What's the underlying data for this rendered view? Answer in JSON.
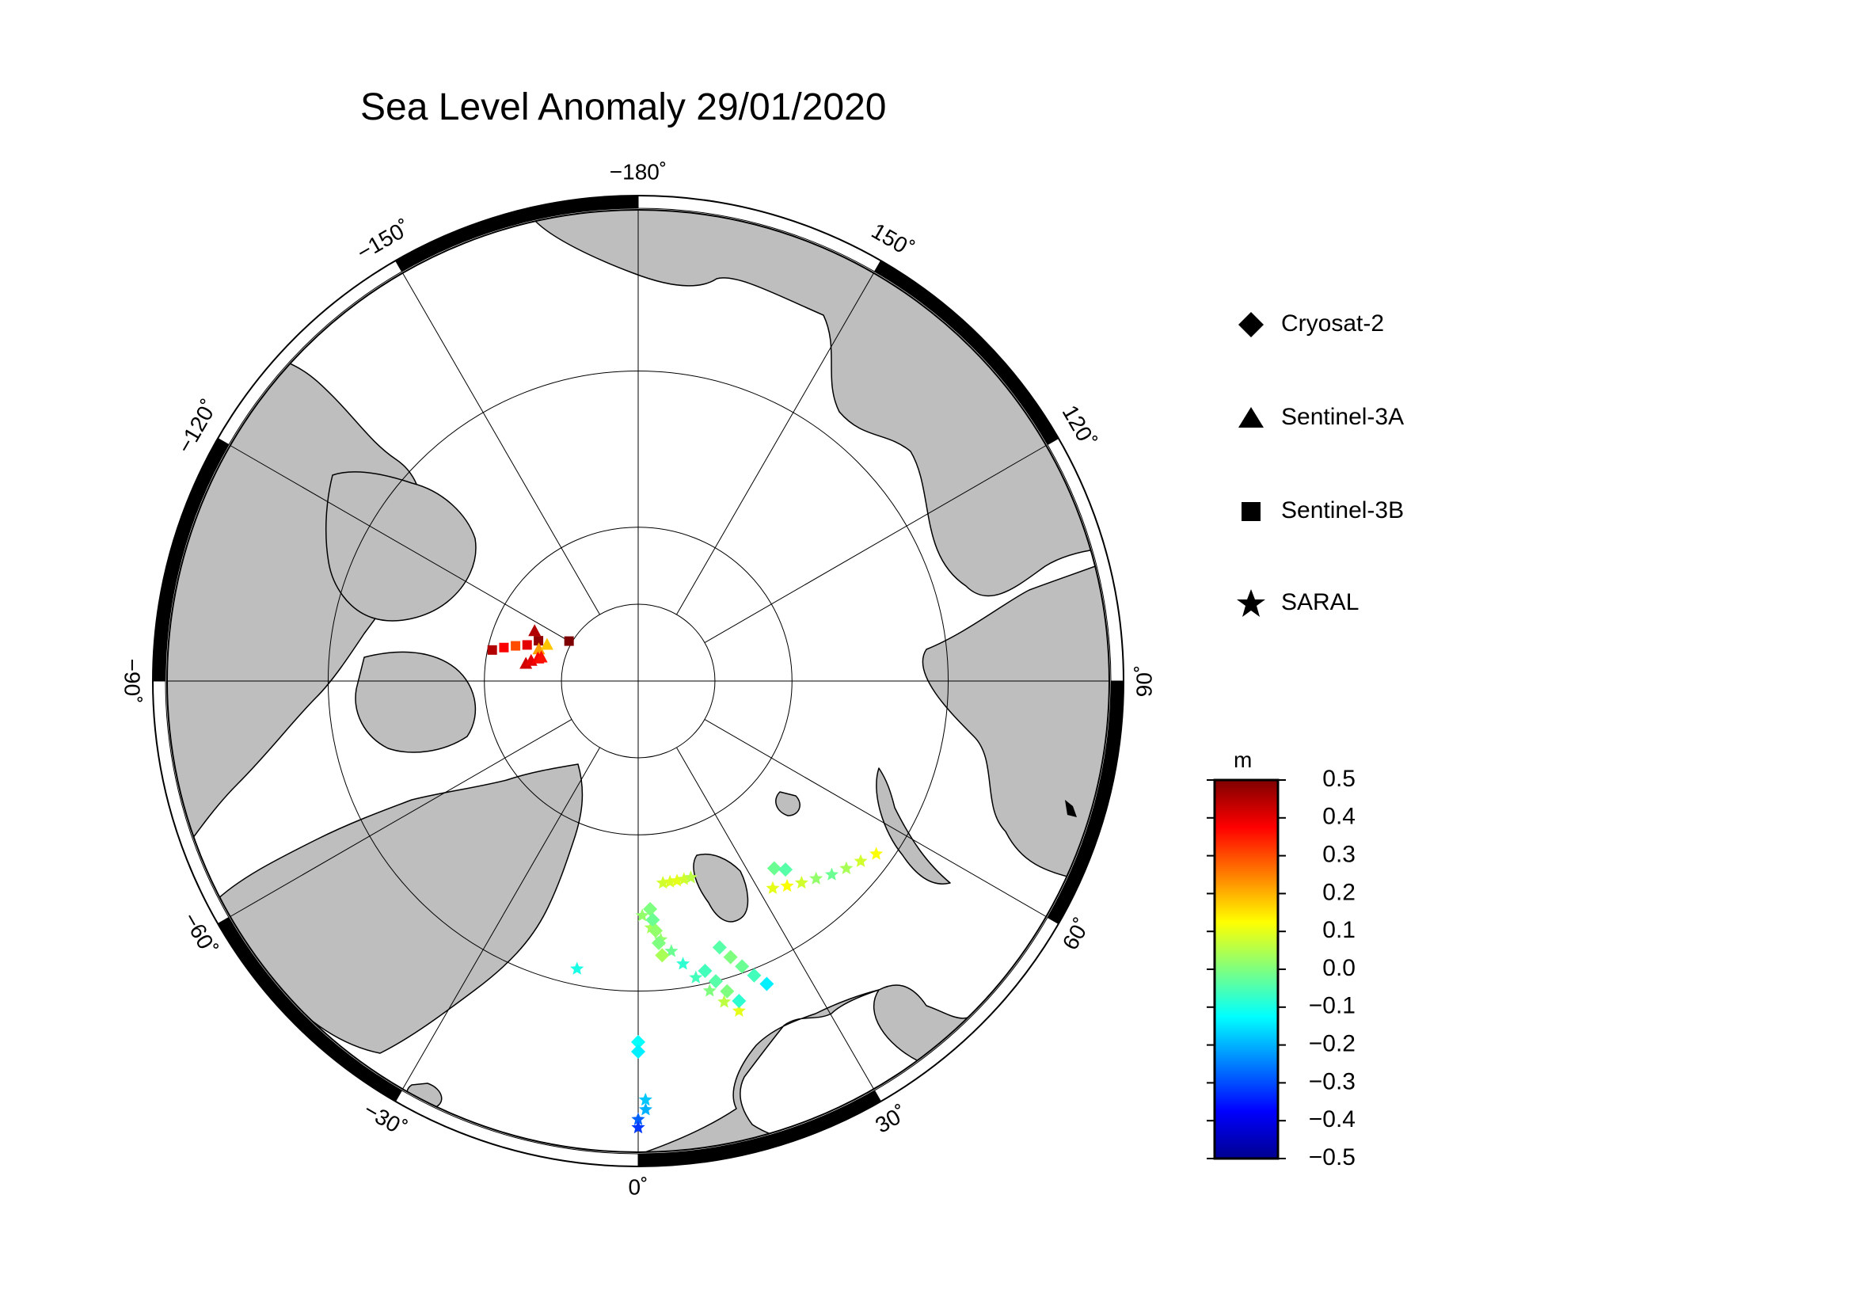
{
  "title": "Sea Level Anomaly 29/01/2020",
  "legend": [
    {
      "label": "Cryosat-2",
      "icon": "diamond-icon"
    },
    {
      "label": "Sentinel-3A",
      "icon": "triangle-icon"
    },
    {
      "label": "Sentinel-3B",
      "icon": "square-icon"
    },
    {
      "label": "SARAL",
      "icon": "star-icon"
    }
  ],
  "colorbar": {
    "unit": "m",
    "ticks": [
      "0.5",
      "0.4",
      "0.3",
      "0.2",
      "0.1",
      "0.0",
      "−0.1",
      "−0.2",
      "−0.3",
      "−0.4",
      "−0.5"
    ],
    "range": [
      -0.5,
      0.5
    ],
    "colors": [
      "#00008f",
      "#0000ff",
      "#007fff",
      "#00ffff",
      "#7fff7f",
      "#ffff00",
      "#ff7f00",
      "#ff0000",
      "#7f0000"
    ]
  },
  "map": {
    "projection": "north polar stereographic",
    "lon_labels": [
      {
        "lon": 180,
        "text": "−180˚"
      },
      {
        "lon": 150,
        "text": "150˚"
      },
      {
        "lon": 120,
        "text": "120˚"
      },
      {
        "lon": 90,
        "text": "90˚"
      },
      {
        "lon": 60,
        "text": "60˚"
      },
      {
        "lon": 30,
        "text": "30˚"
      },
      {
        "lon": 0,
        "text": "0˚"
      },
      {
        "lon": -30,
        "text": "−30˚"
      },
      {
        "lon": -60,
        "text": "−60˚"
      },
      {
        "lon": -90,
        "text": "−90˚"
      },
      {
        "lon": -120,
        "text": "−120˚"
      },
      {
        "lon": -150,
        "text": "−150˚"
      }
    ],
    "land_color": "#bebebe",
    "ocean_color": "#ffffff"
  },
  "observations": [
    {
      "satellite": "Sentinel-3B",
      "lat": 80.3,
      "lon": -102,
      "sla": 0.45
    },
    {
      "satellite": "Sentinel-3B",
      "lat": 81.0,
      "lon": -104,
      "sla": 0.38
    },
    {
      "satellite": "Sentinel-3B",
      "lat": 81.7,
      "lon": -106,
      "sla": 0.3
    },
    {
      "satellite": "Sentinel-3B",
      "lat": 82.4,
      "lon": -108,
      "sla": 0.4
    },
    {
      "satellite": "Sentinel-3B",
      "lat": 83.0,
      "lon": -112,
      "sla": 0.48
    },
    {
      "satellite": "Sentinel-3B",
      "lat": 84.8,
      "lon": -120,
      "sla": 0.5
    },
    {
      "satellite": "Sentinel-3A",
      "lat": 82.5,
      "lon": -116,
      "sla": 0.45
    },
    {
      "satellite": "Sentinel-3A",
      "lat": 83.2,
      "lon": -108,
      "sla": 0.22
    },
    {
      "satellite": "Sentinel-3A",
      "lat": 83.6,
      "lon": -112,
      "sla": 0.18
    },
    {
      "satellite": "Sentinel-3A",
      "lat": 82.6,
      "lon": -99,
      "sla": 0.42
    },
    {
      "satellite": "Sentinel-3A",
      "lat": 82.9,
      "lon": -101,
      "sla": 0.4
    },
    {
      "satellite": "Sentinel-3A",
      "lat": 83.3,
      "lon": -103,
      "sla": 0.38
    },
    {
      "satellite": "Sentinel-3A",
      "lat": 83.5,
      "lon": -104,
      "sla": 0.36
    },
    {
      "satellite": "SARAL",
      "lat": 76.8,
      "lon": 7,
      "sla": 0.08
    },
    {
      "satellite": "SARAL",
      "lat": 76.8,
      "lon": 9,
      "sla": 0.09
    },
    {
      "satellite": "SARAL",
      "lat": 76.8,
      "lon": 11,
      "sla": 0.1
    },
    {
      "satellite": "SARAL",
      "lat": 76.8,
      "lon": 13,
      "sla": 0.08
    },
    {
      "satellite": "SARAL",
      "lat": 76.8,
      "lon": 15,
      "sla": 0.06
    },
    {
      "satellite": "SARAL",
      "lat": 74.8,
      "lon": 1,
      "sla": 0.02
    },
    {
      "satellite": "SARAL",
      "lat": 74.0,
      "lon": 3,
      "sla": 0.04
    },
    {
      "satellite": "SARAL",
      "lat": 73.2,
      "lon": 5,
      "sla": 0.02
    },
    {
      "satellite": "SARAL",
      "lat": 72.4,
      "lon": 7,
      "sla": -0.02
    },
    {
      "satellite": "SARAL",
      "lat": 71.5,
      "lon": 9,
      "sla": -0.08
    },
    {
      "satellite": "SARAL",
      "lat": 70.5,
      "lon": 11,
      "sla": -0.06
    },
    {
      "satellite": "SARAL",
      "lat": 69.5,
      "lon": 13,
      "sla": 0.0
    },
    {
      "satellite": "SARAL",
      "lat": 68.6,
      "lon": 15,
      "sla": 0.06
    },
    {
      "satellite": "SARAL",
      "lat": 67.8,
      "lon": 17,
      "sla": 0.1
    },
    {
      "satellite": "SARAL",
      "lat": 74.0,
      "lon": 33,
      "sla": 0.1
    },
    {
      "satellite": "SARAL",
      "lat": 73.6,
      "lon": 36,
      "sla": 0.12
    },
    {
      "satellite": "SARAL",
      "lat": 73.2,
      "lon": 39,
      "sla": 0.08
    },
    {
      "satellite": "SARAL",
      "lat": 72.8,
      "lon": 42,
      "sla": 0.02
    },
    {
      "satellite": "SARAL",
      "lat": 72.3,
      "lon": 45,
      "sla": -0.02
    },
    {
      "satellite": "SARAL",
      "lat": 71.9,
      "lon": 48,
      "sla": 0.04
    },
    {
      "satellite": "SARAL",
      "lat": 71.5,
      "lon": 51,
      "sla": 0.08
    },
    {
      "satellite": "SARAL",
      "lat": 71.0,
      "lon": 54,
      "sla": 0.12
    },
    {
      "satellite": "SARAL",
      "lat": 71.0,
      "lon": -12,
      "sla": -0.1
    },
    {
      "satellite": "SARAL",
      "lat": 63.2,
      "lon": 1,
      "sla": -0.18
    },
    {
      "satellite": "SARAL",
      "lat": 62.6,
      "lon": 1,
      "sla": -0.2
    },
    {
      "satellite": "SARAL",
      "lat": 62.0,
      "lon": 0,
      "sla": -0.28
    },
    {
      "satellite": "SARAL",
      "lat": 61.5,
      "lon": 0,
      "sla": -0.32
    },
    {
      "satellite": "Cryosat-2",
      "lat": 75.2,
      "lon": 3,
      "sla": 0.0
    },
    {
      "satellite": "Cryosat-2",
      "lat": 74.5,
      "lon": 3.5,
      "sla": -0.02
    },
    {
      "satellite": "Cryosat-2",
      "lat": 73.8,
      "lon": 4,
      "sla": 0.02
    },
    {
      "satellite": "Cryosat-2",
      "lat": 73.0,
      "lon": 4.5,
      "sla": 0.0
    },
    {
      "satellite": "Cryosat-2",
      "lat": 72.2,
      "lon": 5,
      "sla": 0.04
    },
    {
      "satellite": "Cryosat-2",
      "lat": 70.8,
      "lon": 13,
      "sla": -0.06
    },
    {
      "satellite": "Cryosat-2",
      "lat": 70.0,
      "lon": 14.5,
      "sla": -0.04
    },
    {
      "satellite": "Cryosat-2",
      "lat": 69.2,
      "lon": 16,
      "sla": 0.0
    },
    {
      "satellite": "Cryosat-2",
      "lat": 68.4,
      "lon": 17.5,
      "sla": -0.08
    },
    {
      "satellite": "Cryosat-2",
      "lat": 72.0,
      "lon": 17,
      "sla": -0.04
    },
    {
      "satellite": "Cryosat-2",
      "lat": 71.2,
      "lon": 18.5,
      "sla": 0.0
    },
    {
      "satellite": "Cryosat-2",
      "lat": 70.4,
      "lon": 20,
      "sla": -0.02
    },
    {
      "satellite": "Cryosat-2",
      "lat": 69.6,
      "lon": 21.5,
      "sla": -0.06
    },
    {
      "satellite": "Cryosat-2",
      "lat": 68.8,
      "lon": 23,
      "sla": -0.14
    },
    {
      "satellite": "Cryosat-2",
      "lat": 75.0,
      "lon": 36,
      "sla": -0.02
    },
    {
      "satellite": "Cryosat-2",
      "lat": 74.5,
      "lon": 38,
      "sla": -0.04
    },
    {
      "satellite": "Cryosat-2",
      "lat": 66.8,
      "lon": 0,
      "sla": -0.12
    },
    {
      "satellite": "Cryosat-2",
      "lat": 66.2,
      "lon": 0,
      "sla": -0.14
    }
  ]
}
